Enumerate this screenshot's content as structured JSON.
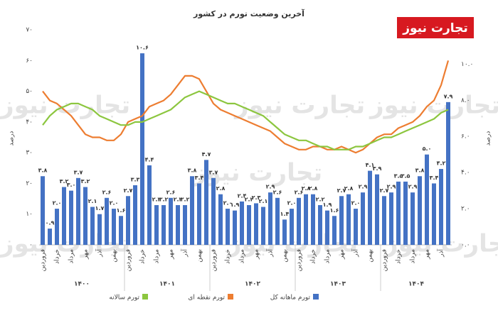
{
  "chart_data": {
    "type": "bar-line",
    "title": "آخرین وضعیت تورم در کشور",
    "logo": "تجارت نیوز",
    "watermark": "تجارت نیوز",
    "ylabel": "درصد",
    "y2label": "درصد",
    "categories": [
      "فروردین",
      null,
      "خرداد",
      null,
      "مرداد",
      null,
      "مهر",
      null,
      "آذر",
      null,
      "بهمن",
      null,
      "فروردین",
      null,
      "خرداد",
      null,
      "مرداد",
      null,
      "مهر",
      null,
      "آذر",
      null,
      "بهمن",
      null,
      "فروردین",
      null,
      "خرداد",
      null,
      "مرداد",
      null,
      "مهر",
      null,
      "آذر",
      null,
      "بهمن",
      null,
      "فروردین",
      null,
      "خرداد",
      null,
      "مرداد",
      null,
      "مهر",
      null,
      "آذر",
      null,
      "بهمن",
      null,
      "فروردین",
      null,
      "خرداد",
      null,
      "مرداد",
      null,
      "مهر",
      null,
      "آذر",
      null
    ],
    "years": [
      "۱۴۰۰",
      "۱۴۰۱",
      "۱۴۰۲",
      "۱۴۰۳",
      "۱۴۰۴"
    ],
    "ylim": [
      0,
      70
    ],
    "yticks": [
      {
        "value": 0,
        "label": "۰"
      },
      {
        "value": 10,
        "label": "۱۰"
      },
      {
        "value": 20,
        "label": "۲۰"
      },
      {
        "value": 30,
        "label": "۳۰"
      },
      {
        "value": 40,
        "label": "۴۰"
      },
      {
        "value": 50,
        "label": "۵۰"
      },
      {
        "value": 60,
        "label": "۶۰"
      },
      {
        "value": 70,
        "label": "۷۰"
      }
    ],
    "y2lim": [
      0,
      11.9
    ],
    "y2ticks": [
      {
        "value": 0,
        "label": "۰.۰"
      },
      {
        "value": 2,
        "label": "۲.۰"
      },
      {
        "value": 4,
        "label": "۴.۰"
      },
      {
        "value": 6,
        "label": "۶.۰"
      },
      {
        "value": 8,
        "label": "۸.۰"
      },
      {
        "value": 10,
        "label": "۱۰.۰"
      }
    ],
    "series": [
      {
        "name": "تورم ماهانه کل",
        "color": "#4472c4",
        "axis": "y2",
        "kind": "bar",
        "values": [
          3.8,
          0.9,
          2.0,
          3.2,
          3.0,
          3.7,
          3.2,
          2.1,
          1.7,
          2.6,
          2.0,
          1.6,
          2.7,
          3.3,
          10.6,
          4.4,
          2.2,
          2.2,
          2.6,
          2.2,
          2.2,
          3.8,
          3.4,
          4.7,
          3.7,
          2.8,
          2.0,
          1.9,
          2.4,
          2.2,
          2.3,
          2.1,
          2.9,
          2.6,
          1.4,
          2.0,
          2.6,
          2.8,
          2.8,
          2.2,
          1.9,
          1.6,
          2.7,
          2.8,
          2.0,
          2.9,
          4.1,
          3.9,
          2.7,
          2.9,
          3.5,
          3.5,
          2.9,
          3.8,
          5.0,
          3.4,
          4.2,
          7.9
        ],
        "value_labels": [
          "۳.۸",
          "۰.۹",
          "۲.۰",
          "۳.۲",
          "۳.۰",
          "۳.۷",
          "۳.۲",
          "۲.۱",
          "۱.۷",
          "۲.۶",
          "۲.۰",
          "۱.۶",
          "۲.۷",
          "۳.۳",
          "۱۰.۶",
          "۴.۴",
          "۲.۲",
          "۲.۲",
          "۲.۶",
          "۲.۲",
          "۲.۲",
          "۳.۸",
          "۳.۴",
          "۴.۷",
          "۳.۷",
          "۲.۸",
          "۲.۰",
          "۱.۹",
          "۲.۴",
          "۲.۲",
          "۲.۳",
          "۲.۱",
          "۲.۹",
          "۲.۶",
          "۱.۴",
          "۲.۰",
          "۲.۶",
          "۲.۸",
          "۲.۸",
          "۲.۲",
          "۱.۹",
          "۱.۶",
          "۲.۷",
          "۲.۸",
          "۲.۰",
          "۲.۹",
          "۴.۱",
          "۳.۹",
          "۲.۷",
          "۲.۹",
          "۳.۵",
          "۳.۵",
          "۲.۹",
          "۳.۸",
          "۵.۰",
          "۳.۴",
          "۴.۲",
          "۷.۹"
        ]
      },
      {
        "name": "تورم نقطه ای",
        "color": "#ed7d31",
        "kind": "line",
        "values": [
          50,
          47,
          46,
          44,
          42,
          39,
          36,
          35,
          35,
          34,
          34,
          36,
          40,
          41,
          42,
          45,
          46,
          47,
          49,
          52,
          55,
          55,
          54,
          50,
          46,
          44,
          43,
          42,
          41,
          40,
          39,
          38,
          37,
          35,
          33,
          32,
          31,
          31,
          32,
          32,
          31,
          31,
          32,
          31,
          30,
          31,
          33,
          35,
          36,
          36,
          38,
          39,
          40,
          42,
          45,
          47,
          52,
          60
        ]
      },
      {
        "name": "تورم سالانه",
        "color": "#8cc63f",
        "kind": "line",
        "values": [
          39,
          42,
          44,
          45,
          46,
          46,
          45,
          44,
          42,
          41,
          40,
          39,
          39,
          40,
          40,
          41,
          42,
          43,
          44,
          46,
          48,
          49,
          50,
          49,
          48,
          47,
          46,
          46,
          45,
          44,
          43,
          42,
          40,
          38,
          36,
          35,
          34,
          34,
          33,
          32,
          32,
          31,
          31,
          31,
          32,
          32,
          33,
          34,
          35,
          35,
          36,
          37,
          38,
          39,
          40,
          41,
          43,
          44
        ]
      }
    ]
  }
}
